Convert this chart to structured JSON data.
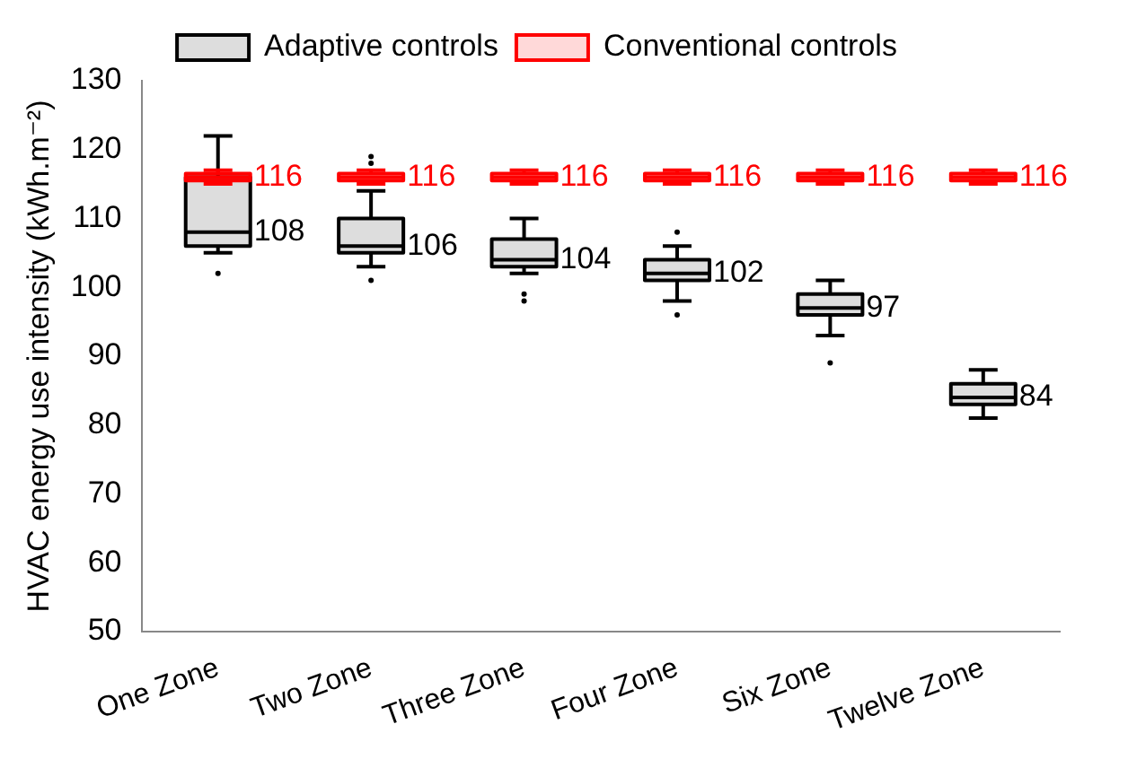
{
  "chart_data": {
    "type": "box",
    "ylabel": "HVAC energy use intensity (kWh.m⁻²)",
    "categories": [
      "One Zone",
      "Two Zone",
      "Three Zone",
      "Four Zone",
      "Six Zone",
      "Twelve Zone"
    ],
    "ylim": [
      50,
      130
    ],
    "yticks": [
      50,
      60,
      70,
      80,
      90,
      100,
      110,
      120,
      130
    ],
    "grid": false,
    "legend": "top",
    "series": [
      {
        "name": "Adaptive controls",
        "color": "#000000",
        "value_labels": [
          "108",
          "106",
          "104",
          "102",
          "97",
          "84"
        ],
        "boxes": [
          {
            "low": 105,
            "q1": 106,
            "median": 108,
            "q3": 116,
            "high": 122,
            "outliers": [
              102
            ]
          },
          {
            "low": 103,
            "q1": 105,
            "median": 106,
            "q3": 110,
            "high": 114,
            "outliers": [
              101,
              118,
              119
            ]
          },
          {
            "low": 102,
            "q1": 103,
            "median": 104,
            "q3": 107,
            "high": 110,
            "outliers": [
              98,
              99
            ]
          },
          {
            "low": 98,
            "q1": 101,
            "median": 102,
            "q3": 104,
            "high": 106,
            "outliers": [
              96,
              108
            ]
          },
          {
            "low": 93,
            "q1": 96,
            "median": 97,
            "q3": 99,
            "high": 101,
            "outliers": [
              89
            ]
          },
          {
            "low": 81,
            "q1": 83,
            "median": 84,
            "q3": 86,
            "high": 88
          }
        ]
      },
      {
        "name": "Conventional controls",
        "color": "#ff0000",
        "value_labels": [
          "116",
          "116",
          "116",
          "116",
          "116",
          "116"
        ],
        "boxes": [
          {
            "low": 115,
            "q1": 115.5,
            "median": 116,
            "q3": 116.5,
            "high": 117
          },
          {
            "low": 115,
            "q1": 115.5,
            "median": 116,
            "q3": 116.5,
            "high": 117
          },
          {
            "low": 115,
            "q1": 115.5,
            "median": 116,
            "q3": 116.5,
            "high": 117
          },
          {
            "low": 115,
            "q1": 115.5,
            "median": 116,
            "q3": 116.5,
            "high": 117
          },
          {
            "low": 115,
            "q1": 115.5,
            "median": 116,
            "q3": 116.5,
            "high": 117
          },
          {
            "low": 115,
            "q1": 115.5,
            "median": 116,
            "q3": 116.5,
            "high": 117
          }
        ]
      }
    ]
  }
}
